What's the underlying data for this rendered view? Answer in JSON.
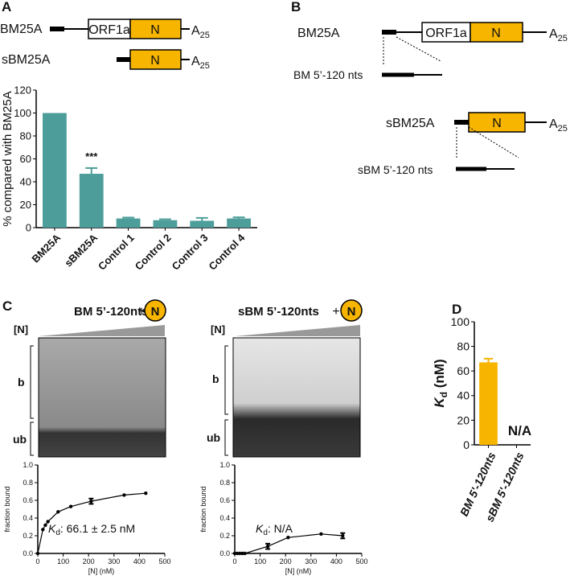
{
  "panels": [
    "A",
    "B",
    "C",
    "D"
  ],
  "construct_a": {
    "full_name": "BM25A",
    "orf": "ORF1a",
    "n": "N",
    "tail": "A",
    "tail_sub": "25",
    "short_name": "sBM25A"
  },
  "construct_b": {
    "full_name": "BM25A",
    "orf": "ORF1a",
    "n": "N",
    "tail": "A",
    "tail_sub": "25",
    "full_fragment": "BM 5’-120 nts",
    "short_name": "sBM25A",
    "short_fragment": "sBM 5’-120 nts"
  },
  "gels": [
    {
      "title": "BM 5’-120nts",
      "plus": "+",
      "protein": "N",
      "conc": "[N]",
      "bound": "b",
      "unbound": "ub"
    },
    {
      "title": "sBM 5’-120nts",
      "plus": "+",
      "protein": "N",
      "conc": "[N]",
      "bound": "b",
      "unbound": "ub"
    }
  ],
  "chart_data": [
    {
      "type": "bar",
      "ylabel": "% compared with BM25A",
      "categories": [
        "BM25A",
        "sBM25A",
        "Control 1",
        "Control 2",
        "Control 3",
        "Control 4"
      ],
      "values": [
        100,
        47,
        8,
        6.5,
        6,
        8
      ],
      "errors": [
        null,
        5,
        0.8,
        0.8,
        2.5,
        1
      ],
      "annotation": {
        "text": "***",
        "category": "sBM25A"
      },
      "color": "#4d9e9b",
      "ylim": [
        0,
        120
      ],
      "yticks": [
        0,
        20,
        40,
        60,
        80,
        100,
        120
      ]
    },
    {
      "type": "line",
      "xlabel": "[N] (nM)",
      "ylabel": "fraction bound",
      "x": [
        0,
        20,
        30,
        40,
        80,
        130,
        210,
        340,
        425
      ],
      "values": [
        0,
        0.27,
        0.32,
        0.36,
        0.47,
        0.53,
        0.59,
        0.66,
        0.68
      ],
      "errors": [
        null,
        null,
        null,
        null,
        null,
        null,
        0.03,
        null,
        null
      ],
      "color": "#000000",
      "xlim": [
        0,
        500
      ],
      "xticks": [
        0,
        100,
        200,
        300,
        400,
        500
      ],
      "ylim": [
        0,
        1
      ],
      "yticks": [
        {
          "value": 0,
          "label": "0.0"
        },
        {
          "value": 0.2,
          "label": "0.2"
        },
        {
          "value": 0.4,
          "label": "0.4"
        },
        {
          "value": 0.6,
          "label": "0.6"
        },
        {
          "value": 0.8,
          "label": "0.8"
        },
        {
          "value": 1,
          "label": "1.0"
        }
      ],
      "annotation": {
        "symbol": "K",
        "subscript": "d",
        "text": ": 66.1 ± 2.5 nM"
      }
    },
    {
      "type": "line",
      "xlabel": "[N] (nM)",
      "ylabel": "fraction bound",
      "x": [
        0,
        10,
        20,
        30,
        40,
        130,
        210,
        340,
        425
      ],
      "values": [
        0,
        0,
        0,
        0,
        0,
        0.08,
        0.18,
        0.22,
        0.2
      ],
      "errors": [
        null,
        null,
        null,
        null,
        null,
        0.03,
        null,
        null,
        0.03
      ],
      "color": "#000000",
      "xlim": [
        0,
        500
      ],
      "xticks": [
        0,
        100,
        200,
        300,
        400,
        500
      ],
      "ylim": [
        0,
        1
      ],
      "yticks": [
        {
          "value": 0,
          "label": "0.0"
        },
        {
          "value": 0.2,
          "label": "0.2"
        },
        {
          "value": 0.4,
          "label": "0.4"
        },
        {
          "value": 0.6,
          "label": "0.6"
        },
        {
          "value": 0.8,
          "label": "0.8"
        },
        {
          "value": 1,
          "label": "1.0"
        }
      ],
      "annotation": {
        "symbol": "K",
        "subscript": "d",
        "text": ": N/A"
      }
    },
    {
      "type": "bar",
      "ylabel": {
        "symbol": "K",
        "subscript": "d",
        "text": " (nM)"
      },
      "categories": [
        "BM 5'-120nts",
        "sBM 5'-120nts"
      ],
      "values": [
        67,
        null
      ],
      "errors": [
        3,
        null
      ],
      "annotation": {
        "text": "N/A",
        "category": "sBM 5'-120nts"
      },
      "color": "#f7b500",
      "ylim": [
        0,
        100
      ],
      "yticks": [
        0,
        20,
        40,
        60,
        80,
        100
      ]
    }
  ]
}
